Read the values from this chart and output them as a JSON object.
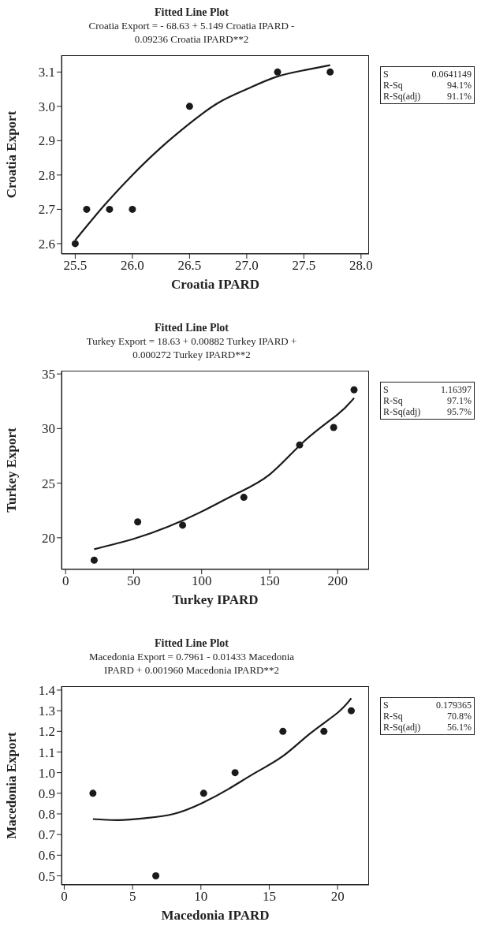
{
  "chart_data": [
    {
      "type": "scatter",
      "title": "Fitted Line Plot",
      "subtitle": "Croatia Export = - 68.63 + 5.149 Croatia IPARD - 0.09236 Croatia IPARD**2",
      "xlabel": "Croatia IPARD",
      "ylabel": "Croatia Export",
      "marker": "circle",
      "xlim": [
        25.38,
        28.07
      ],
      "xticks": [
        {
          "value": 25.5,
          "label": "25.5"
        },
        {
          "value": 26,
          "label": "26.0"
        },
        {
          "value": 26.5,
          "label": "26.5"
        },
        {
          "value": 27,
          "label": "27.0"
        },
        {
          "value": 27.5,
          "label": "27.5"
        },
        {
          "value": 28,
          "label": "28.0"
        }
      ],
      "ylim": [
        2.57,
        3.149
      ],
      "yticks": [
        2.6,
        2.7,
        2.8,
        2.9,
        {
          "value": 3,
          "label": "3.0"
        },
        3.1
      ],
      "series": [
        {
          "type": "scatter",
          "color": "#1a1a1a",
          "x": [
            25.5,
            25.6,
            25.8,
            26.0,
            26.5,
            27.27,
            27.73
          ],
          "values": [
            2.6,
            2.7,
            2.7,
            2.7,
            3.0,
            3.1,
            3.1
          ]
        },
        {
          "type": "line",
          "color": "#1a1a1a",
          "marker": "none",
          "x": [
            25.5,
            25.75,
            26.0,
            26.25,
            26.5,
            26.75,
            27.0,
            27.25,
            27.5,
            27.73
          ],
          "values": [
            2.61,
            2.71,
            2.8,
            2.88,
            2.95,
            3.01,
            3.05,
            3.085,
            3.105,
            3.12
          ]
        }
      ],
      "annotations": [
        "S",
        "0.0641149",
        "R-Sq",
        "94.1%",
        "R-Sq(adj)",
        "91.1%"
      ]
    },
    {
      "type": "scatter",
      "title": "Fitted Line Plot",
      "subtitle": "Turkey Export = 18.63 + 0.00882 Turkey IPARD + 0.000272 Turkey IPARD**2",
      "xlabel": "Turkey IPARD",
      "ylabel": "Turkey Export",
      "marker": "circle",
      "xlim": [
        -3,
        223
      ],
      "xticks": [
        0,
        50,
        100,
        150,
        200
      ],
      "ylim": [
        17.1,
        35.3
      ],
      "yticks": [
        20,
        25,
        30,
        35
      ],
      "series": [
        {
          "type": "scatter",
          "color": "#1a1a1a",
          "x": [
            21,
            53,
            86,
            131,
            172,
            197,
            212
          ],
          "values": [
            17.95,
            21.45,
            21.15,
            23.7,
            28.5,
            30.1,
            33.55
          ]
        },
        {
          "type": "line",
          "color": "#1a1a1a",
          "marker": "none",
          "x": [
            21,
            50,
            75,
            100,
            125,
            150,
            175,
            200,
            212
          ],
          "values": [
            18.95,
            19.9,
            21.0,
            22.4,
            24.0,
            25.8,
            28.8,
            31.3,
            32.8
          ]
        }
      ],
      "annotations": [
        "S",
        "1.16397",
        "R-Sq",
        "97.1%",
        "R-Sq(adj)",
        "95.7%"
      ]
    },
    {
      "type": "scatter",
      "title": "Fitted Line Plot",
      "subtitle": "Macedonia Export = 0.7961 - 0.01433 Macedonia IPARD + 0.001960 Macedonia IPARD**2",
      "xlabel": "Macedonia IPARD",
      "ylabel": "Macedonia Export",
      "marker": "circle",
      "xlim": [
        -0.2,
        22.3
      ],
      "xticks": [
        0,
        5,
        10,
        15,
        20
      ],
      "ylim": [
        0.456,
        1.419
      ],
      "yticks": [
        0.5,
        0.6,
        0.7,
        0.8,
        0.9,
        {
          "value": 1,
          "label": "1.0"
        },
        1.1,
        1.2,
        1.3,
        1.4
      ],
      "series": [
        {
          "type": "scatter",
          "color": "#1a1a1a",
          "x": [
            2.1,
            6.7,
            10.2,
            12.5,
            16.0,
            19.0,
            21.0
          ],
          "values": [
            0.9,
            0.5,
            0.9,
            1.0,
            1.2,
            1.2,
            1.3
          ]
        },
        {
          "type": "line",
          "color": "#1a1a1a",
          "marker": "none",
          "x": [
            2.1,
            4,
            6,
            8,
            10,
            12,
            14,
            16,
            18,
            20,
            21
          ],
          "values": [
            0.775,
            0.77,
            0.78,
            0.8,
            0.85,
            0.92,
            1.0,
            1.08,
            1.19,
            1.29,
            1.36
          ]
        }
      ],
      "annotations": [
        "S",
        "0.179365",
        "R-Sq",
        "70.8%",
        "R-Sq(adj)",
        "56.1%"
      ]
    }
  ]
}
